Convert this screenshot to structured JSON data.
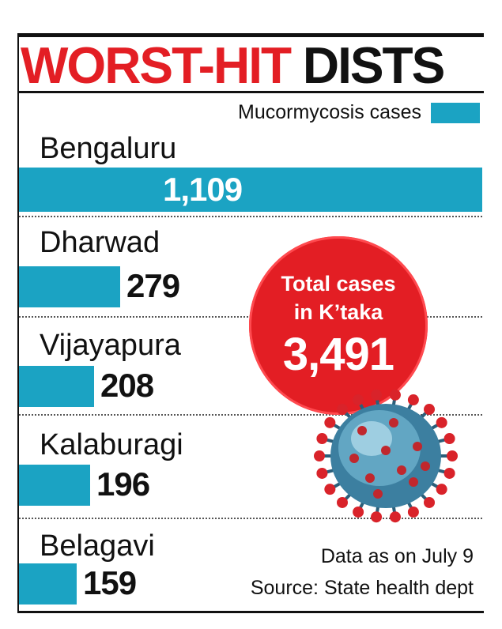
{
  "headline": {
    "part1": "WORST-HIT",
    "part2": "DISTS"
  },
  "colors": {
    "bar": "#1ba3c3",
    "accent": "#e31e24",
    "text": "#111111"
  },
  "chart_data": {
    "type": "bar",
    "orientation": "horizontal",
    "title": "WORST-HIT DISTS",
    "legend": "Mucormycosis cases",
    "legend_position": "top-right",
    "categories": [
      "Bengaluru",
      "Dharwad",
      "Vijayapura",
      "Kalaburagi",
      "Belagavi"
    ],
    "values": [
      1109,
      279,
      208,
      196,
      159
    ],
    "value_labels": [
      "1,109",
      "279",
      "208",
      "196",
      "159"
    ]
  },
  "callout": {
    "line1": "Total cases",
    "line2": "in K’taka",
    "value": "3,491"
  },
  "notes": {
    "date": "Data as on July 9",
    "source": "Source: State health dept"
  },
  "icons": {
    "virus": "coronavirus-icon"
  }
}
